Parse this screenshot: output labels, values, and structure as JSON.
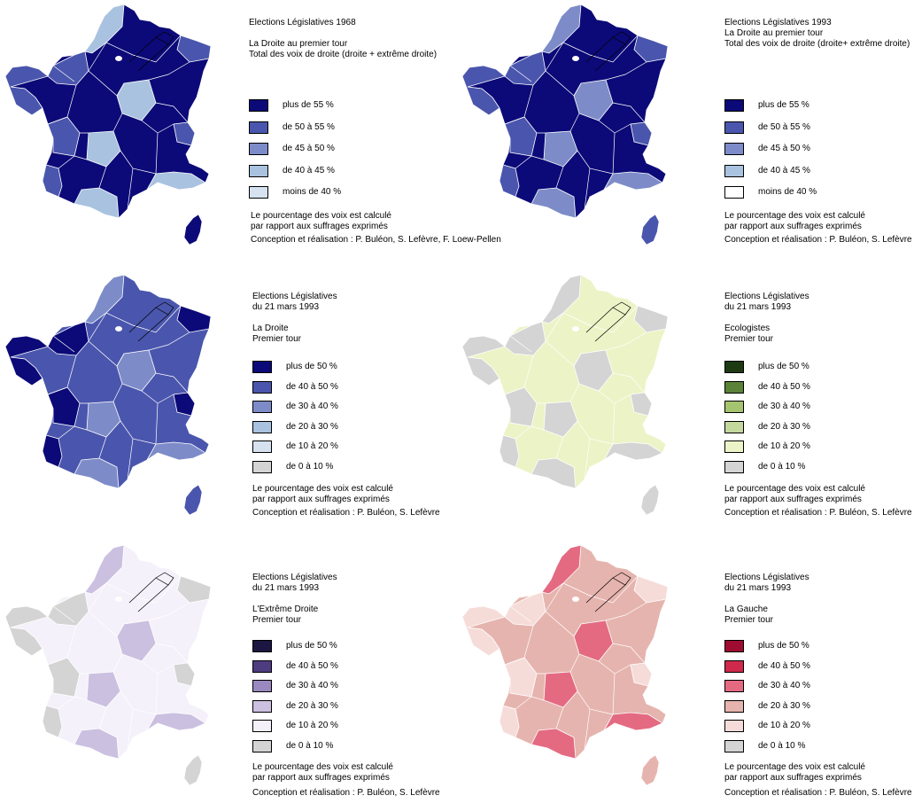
{
  "panels": [
    {
      "title": [
        "Elections Législatives 1968",
        "",
        "La Droite au premier tour",
        "Total des voix de droite (droite + extrême droite)"
      ],
      "legend": [
        {
          "label": "plus de 55 %",
          "color": "#0c0a78"
        },
        {
          "label": "de 50 à 55 %",
          "color": "#4a56ad"
        },
        {
          "label": "de 45 à 50 %",
          "color": "#7d8cc8"
        },
        {
          "label": "de 40 à 45 %",
          "color": "#a9c2e0"
        },
        {
          "label": "moins de 40 %",
          "color": "#d6e2f0"
        }
      ],
      "note": [
        "Le pourcentage des voix est calculé",
        "par rapport aux suffrages exprimés"
      ],
      "credit": "Conception et réalisation : P. Buléon, S. Lefèvre, F. Loew-Pellen"
    },
    {
      "title": [
        "Elections Législatives 1993",
        "La Droite au premier tour",
        "Total des voix de droite (droite+ extrême droite)"
      ],
      "legend": [
        {
          "label": "plus de 55 %",
          "color": "#0c0a78"
        },
        {
          "label": "de 50 à 55 %",
          "color": "#4a56ad"
        },
        {
          "label": "de 45 à 50 %",
          "color": "#7d8cc8"
        },
        {
          "label": "de 40 à 45 %",
          "color": "#a9c2e0"
        },
        {
          "label": "moins de 40 %",
          "color": "#ffffff"
        }
      ],
      "note": [
        "Le pourcentage des voix est calculé",
        "par rapport aux suffrages exprimés"
      ],
      "credit": "Conception et réalisation : P. Buléon, S. Lefèvre"
    },
    {
      "title": [
        "Elections Législatives",
        "du 21 mars 1993",
        "",
        "La Droite",
        "Premier tour"
      ],
      "legend": [
        {
          "label": "plus de 50 %",
          "color": "#0c0a78"
        },
        {
          "label": "de 40 à 50 %",
          "color": "#4a56ad"
        },
        {
          "label": "de 30 à 40 %",
          "color": "#7d8cc8"
        },
        {
          "label": "de 20 à 30 %",
          "color": "#a9c2e0"
        },
        {
          "label": "de 10 à 20 %",
          "color": "#d6e2f0"
        },
        {
          "label": "de 0 à 10 %",
          "color": "#d4d4d4"
        }
      ],
      "note": [
        "Le pourcentage des voix est calculé",
        "par rapport aux suffrages exprimés"
      ],
      "credit": "Conception et réalisation : P. Buléon, S. Lefèvre"
    },
    {
      "title": [
        "Elections Législatives",
        "du 21 mars 1993",
        "",
        "Ecologistes",
        "Premier tour"
      ],
      "legend": [
        {
          "label": "plus de 50 %",
          "color": "#1e3a12"
        },
        {
          "label": "de 40 à 50 %",
          "color": "#5a8238"
        },
        {
          "label": "de 30 à 40 %",
          "color": "#a5c470"
        },
        {
          "label": "de 20 à 30 %",
          "color": "#c4d89e"
        },
        {
          "label": "de 10 à 20 %",
          "color": "#ecf3c6"
        },
        {
          "label": "de 0 à 10 %",
          "color": "#d4d4d4"
        }
      ],
      "note": [
        "Le pourcentage des voix est calculé",
        "par rapport aux suffrages exprimés"
      ],
      "credit": "Conception et réalisation : P. Buléon, S. Lefèvre"
    },
    {
      "title": [
        "Elections Législatives",
        "du 21 mars 1993",
        "",
        "L'Extrême Droite",
        "Premier tour"
      ],
      "legend": [
        {
          "label": "plus de 50 %",
          "color": "#1c1642"
        },
        {
          "label": "de 40 à 50 %",
          "color": "#4e3c80"
        },
        {
          "label": "de 30 à 40 %",
          "color": "#9a89bf"
        },
        {
          "label": "de 20 à 30 %",
          "color": "#cbc0e0"
        },
        {
          "label": "de 10 à 20 %",
          "color": "#f4f1fa"
        },
        {
          "label": "de 0 à 10 %",
          "color": "#d4d4d4"
        }
      ],
      "note": [
        "Le pourcentage des voix est calculé",
        "par rapport aux suffrages exprimés"
      ],
      "credit": "Conception et réalisation : P. Buléon, S. Lefèvre"
    },
    {
      "title": [
        "Elections Législatives",
        "du 21 mars 1993",
        "",
        "La Gauche",
        "Premier tour"
      ],
      "legend": [
        {
          "label": "plus de 50 %",
          "color": "#9e0c32"
        },
        {
          "label": "de 40 à 50 %",
          "color": "#cf2a4c"
        },
        {
          "label": "de 30 à 40 %",
          "color": "#e46a82"
        },
        {
          "label": "de 20 à 30 %",
          "color": "#e6b4ae"
        },
        {
          "label": "de 10 à 20 %",
          "color": "#f6dcd8"
        },
        {
          "label": "de 0 à 10 %",
          "color": "#d4d4d4"
        }
      ],
      "note": [
        "Le pourcentage des voix est calculé",
        "par rapport aux suffrages exprimés"
      ],
      "credit": "Conception et réalisation : P. Buléon, S. Lefèvre"
    }
  ],
  "map_fills": [
    {
      "base": "#0c0a78",
      "alt": "#4a56ad",
      "alt2": "#a9c2e0",
      "corsica": "#0c0a78"
    },
    {
      "base": "#0c0a78",
      "alt": "#4a56ad",
      "alt2": "#7d8cc8",
      "corsica": "#4a56ad"
    },
    {
      "base": "#4a56ad",
      "alt": "#0c0a78",
      "alt2": "#7d8cc8",
      "corsica": "#4a56ad"
    },
    {
      "base": "#ecf3c6",
      "alt": "#d4d4d4",
      "alt2": "#d4d4d4",
      "corsica": "#d4d4d4"
    },
    {
      "base": "#f4f1fa",
      "alt": "#d4d4d4",
      "alt2": "#cbc0e0",
      "corsica": "#d4d4d4"
    },
    {
      "base": "#e6b4ae",
      "alt": "#f6dcd8",
      "alt2": "#e46a82",
      "corsica": "#e6b4ae"
    }
  ]
}
